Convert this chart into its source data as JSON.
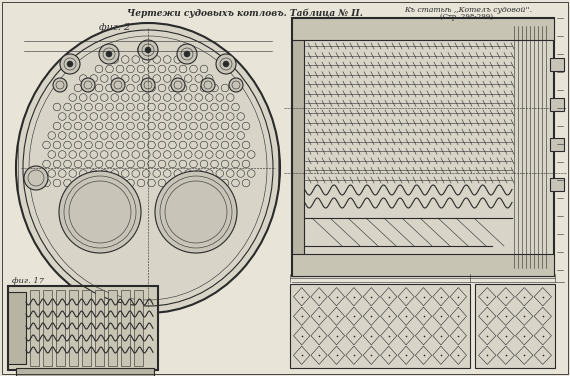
{
  "background_color": "#e8e4d8",
  "title_center": "Чертежи судовыхъ котловъ. Таблица № II.",
  "title_right_line1": "Къ статьѣ ,,Котелъ судовой''.",
  "title_right_line2": "(Стр. 298-299).",
  "fig2_label": "фиг. 2",
  "fig17_label": "фиг. 17",
  "line_color": "#2a2a2a",
  "thin_line": 0.4,
  "medium_line": 0.8,
  "thick_line": 1.5,
  "very_thick_line": 2.2
}
